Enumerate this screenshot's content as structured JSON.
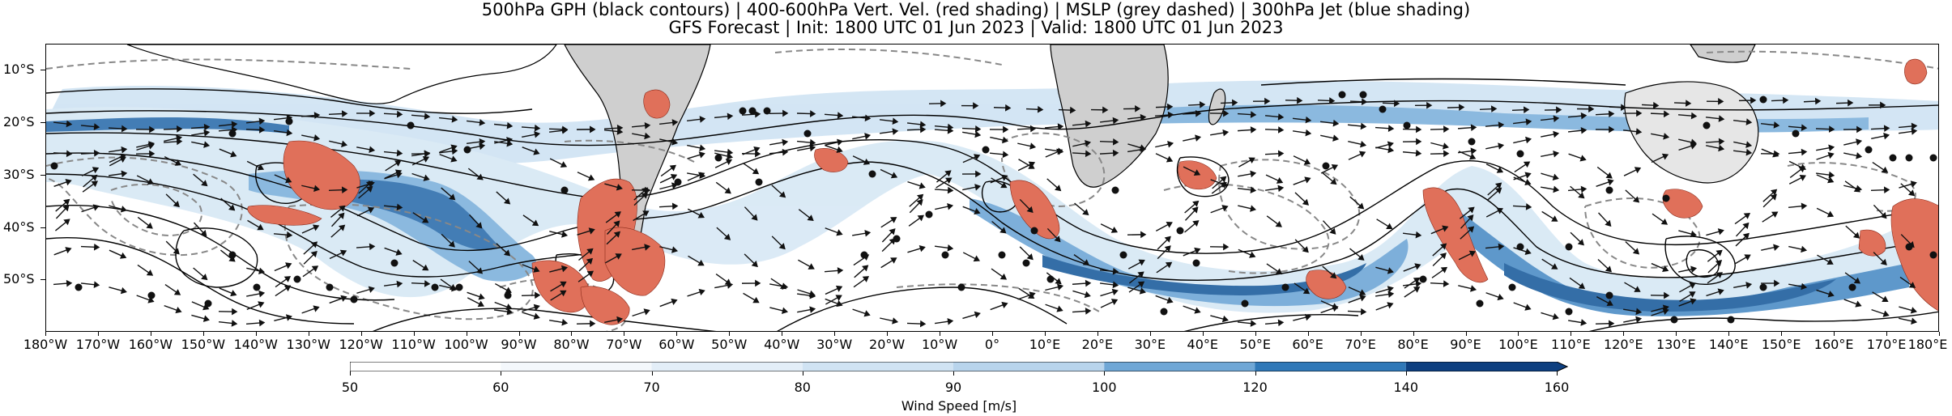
{
  "title_line1": "500hPa GPH (black contours) | 400-600hPa Vert. Vel. (red shading) | MSLP (grey dashed) | 300hPa Jet (blue shading)",
  "title_line2": "GFS Forecast | Init: 1800 UTC 01 Jun 2023 | Valid: 1800 UTC 01 Jun 2023",
  "map": {
    "lon_range": [
      -180,
      180
    ],
    "lat_range": [
      -60,
      -5
    ],
    "lat_ticks": [
      "10°S",
      "20°S",
      "30°S",
      "40°S",
      "50°S"
    ],
    "lat_tick_values": [
      -10,
      -20,
      -30,
      -40,
      -50
    ],
    "lon_ticks": [
      "180°W",
      "170°W",
      "160°W",
      "150°W",
      "140°W",
      "130°W",
      "120°W",
      "110°W",
      "100°W",
      "90°W",
      "80°W",
      "70°W",
      "60°W",
      "50°W",
      "40°W",
      "30°W",
      "20°W",
      "10°W",
      "0°",
      "10°E",
      "20°E",
      "30°E",
      "40°E",
      "50°E",
      "60°E",
      "70°E",
      "80°E",
      "90°E",
      "100°E",
      "110°E",
      "120°E",
      "130°E",
      "140°E",
      "150°E",
      "160°E",
      "170°E",
      "180°E"
    ],
    "colors": {
      "land": "#cfcfcf",
      "jet_light": "#cfe3f3",
      "jet_mid": "#7fb2dc",
      "jet_dark": "#1f5f9e",
      "uplift": "#e0705a",
      "mslp": "#888888",
      "gph": "#000000"
    }
  },
  "colorbar": {
    "label": "Wind Speed [m/s]",
    "ticks": [
      "50",
      "60",
      "70",
      "80",
      "90",
      "100",
      "120",
      "140",
      "160"
    ],
    "colors": [
      "#ffffff",
      "#f4f8fc",
      "#e3eef8",
      "#d0e3f3",
      "#b8d4ec",
      "#6fa7d6",
      "#2f78b8",
      "#0d3f80"
    ]
  }
}
